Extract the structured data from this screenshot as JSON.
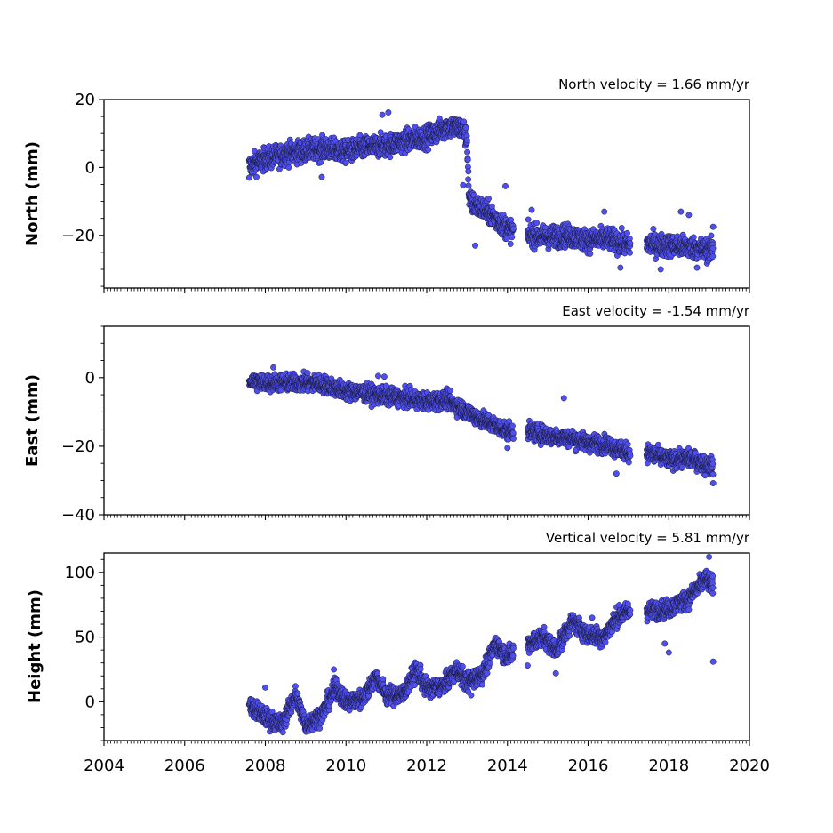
{
  "chart_data": [
    {
      "type": "scatter",
      "velocity_text": "North velocity = 1.66 mm/yr",
      "ylabel": "North (mm)",
      "xlim": [
        2004,
        2020
      ],
      "ylim": [
        -35.5,
        20
      ],
      "yticks": [
        -20,
        0,
        20
      ],
      "xtick_labels_shown": false,
      "marker_color": "#4f4ff0",
      "trend": [
        [
          2007.6,
          0.5
        ],
        [
          2008.0,
          2.5
        ],
        [
          2008.5,
          4.0
        ],
        [
          2009.0,
          5.0
        ],
        [
          2009.5,
          5.5
        ],
        [
          2010.0,
          4.5
        ],
        [
          2010.5,
          6.0
        ],
        [
          2011.0,
          6.5
        ],
        [
          2011.5,
          8.0
        ],
        [
          2012.0,
          9.0
        ],
        [
          2012.5,
          12.0
        ],
        [
          2012.9,
          11.5
        ],
        [
          2013.0,
          8.0
        ],
        [
          2013.05,
          -10.0
        ],
        [
          2013.5,
          -13.0
        ],
        [
          2014.0,
          -18.0
        ],
        [
          2014.5,
          -20.0
        ],
        [
          2015.0,
          -20.5
        ],
        [
          2015.5,
          -20.0
        ],
        [
          2016.0,
          -21.5
        ],
        [
          2016.5,
          -21.0
        ],
        [
          2017.0,
          -23.0
        ],
        [
          2017.5,
          -22.5
        ],
        [
          2018.0,
          -23.0
        ],
        [
          2018.5,
          -23.5
        ],
        [
          2019.1,
          -24.5
        ]
      ],
      "gaps": [
        [
          2014.15,
          2014.5
        ],
        [
          2017.05,
          2017.45
        ]
      ],
      "scatter_mm": 1.8,
      "outliers": [
        [
          2010.9,
          15.5
        ],
        [
          2011.05,
          16.2
        ],
        [
          2009.4,
          -2.8
        ],
        [
          2007.6,
          -3.0
        ],
        [
          2012.9,
          -5.2
        ],
        [
          2013.95,
          -5.5
        ],
        [
          2013.2,
          -23.0
        ],
        [
          2014.6,
          -12.5
        ],
        [
          2016.4,
          -13.0
        ],
        [
          2018.3,
          -13.0
        ],
        [
          2018.5,
          -14.0
        ],
        [
          2019.1,
          -17.5
        ],
        [
          2017.8,
          -30.0
        ],
        [
          2018.7,
          -29.5
        ],
        [
          2016.8,
          -29.5
        ]
      ]
    },
    {
      "type": "scatter",
      "velocity_text": "East velocity = -1.54 mm/yr",
      "ylabel": "East (mm)",
      "xlim": [
        2004,
        2020
      ],
      "ylim": [
        -40,
        15
      ],
      "yticks": [
        -40,
        -20,
        0
      ],
      "xtick_labels_shown": false,
      "marker_color": "#4f4ff0",
      "trend": [
        [
          2007.6,
          -1.0
        ],
        [
          2008.0,
          -1.5
        ],
        [
          2008.5,
          -1.5
        ],
        [
          2009.0,
          -1.5
        ],
        [
          2009.5,
          -2.0
        ],
        [
          2010.0,
          -4.0
        ],
        [
          2010.5,
          -4.5
        ],
        [
          2011.0,
          -5.5
        ],
        [
          2011.5,
          -6.0
        ],
        [
          2012.0,
          -7.0
        ],
        [
          2012.5,
          -6.5
        ],
        [
          2013.0,
          -10.0
        ],
        [
          2013.5,
          -13.0
        ],
        [
          2014.0,
          -15.5
        ],
        [
          2014.5,
          -15.5
        ],
        [
          2015.0,
          -17.0
        ],
        [
          2015.5,
          -17.5
        ],
        [
          2016.0,
          -19.0
        ],
        [
          2016.5,
          -19.5
        ],
        [
          2017.0,
          -22.0
        ],
        [
          2017.5,
          -22.0
        ],
        [
          2018.0,
          -24.0
        ],
        [
          2018.5,
          -23.5
        ],
        [
          2019.1,
          -26.0
        ]
      ],
      "gaps": [
        [
          2014.15,
          2014.5
        ],
        [
          2017.05,
          2017.45
        ]
      ],
      "scatter_mm": 1.4,
      "outliers": [
        [
          2008.2,
          3.0
        ],
        [
          2010.8,
          0.5
        ],
        [
          2010.95,
          0.3
        ],
        [
          2015.4,
          -6.0
        ],
        [
          2014.0,
          -20.5
        ],
        [
          2016.7,
          -28.0
        ],
        [
          2019.1,
          -30.8
        ],
        [
          2018.9,
          -28.5
        ]
      ]
    },
    {
      "type": "scatter",
      "velocity_text": "Vertical velocity = 5.81 mm/yr",
      "ylabel": "Height (mm)",
      "xlim": [
        2004,
        2020
      ],
      "xticks": [
        2004,
        2006,
        2008,
        2010,
        2012,
        2014,
        2016,
        2018,
        2020
      ],
      "ylim": [
        -30,
        115
      ],
      "yticks": [
        0,
        50,
        100
      ],
      "xtick_labels_shown": true,
      "marker_color": "#4f4ff0",
      "trend": [
        [
          2007.6,
          -2.0
        ],
        [
          2008.0,
          -12.0
        ],
        [
          2008.4,
          -18.0
        ],
        [
          2008.75,
          5.0
        ],
        [
          2009.0,
          -18.0
        ],
        [
          2009.4,
          -10.0
        ],
        [
          2009.75,
          12.0
        ],
        [
          2010.0,
          0.0
        ],
        [
          2010.4,
          2.0
        ],
        [
          2010.75,
          20.0
        ],
        [
          2011.0,
          5.0
        ],
        [
          2011.4,
          5.0
        ],
        [
          2011.75,
          25.0
        ],
        [
          2012.0,
          10.0
        ],
        [
          2012.4,
          12.0
        ],
        [
          2012.75,
          25.0
        ],
        [
          2013.0,
          15.0
        ],
        [
          2013.4,
          22.0
        ],
        [
          2013.7,
          45.0
        ],
        [
          2014.0,
          35.0
        ],
        [
          2014.5,
          45.0
        ],
        [
          2014.9,
          50.0
        ],
        [
          2015.2,
          40.0
        ],
        [
          2015.6,
          62.0
        ],
        [
          2016.0,
          52.0
        ],
        [
          2016.4,
          50.0
        ],
        [
          2016.7,
          65.0
        ],
        [
          2017.0,
          70.0
        ],
        [
          2017.5,
          70.0
        ],
        [
          2018.0,
          72.0
        ],
        [
          2018.5,
          80.0
        ],
        [
          2018.9,
          95.0
        ],
        [
          2019.1,
          90.0
        ]
      ],
      "gaps": [
        [
          2014.15,
          2014.5
        ],
        [
          2017.05,
          2017.45
        ]
      ],
      "scatter_mm": 4.0,
      "outliers": [
        [
          2019.1,
          31.0
        ],
        [
          2019.0,
          112.0
        ],
        [
          2018.0,
          38.0
        ],
        [
          2017.9,
          45.0
        ],
        [
          2014.5,
          28.0
        ],
        [
          2015.2,
          22.0
        ],
        [
          2013.1,
          5.0
        ],
        [
          2008.0,
          11.0
        ],
        [
          2016.1,
          65.0
        ],
        [
          2009.7,
          25.0
        ]
      ]
    }
  ]
}
